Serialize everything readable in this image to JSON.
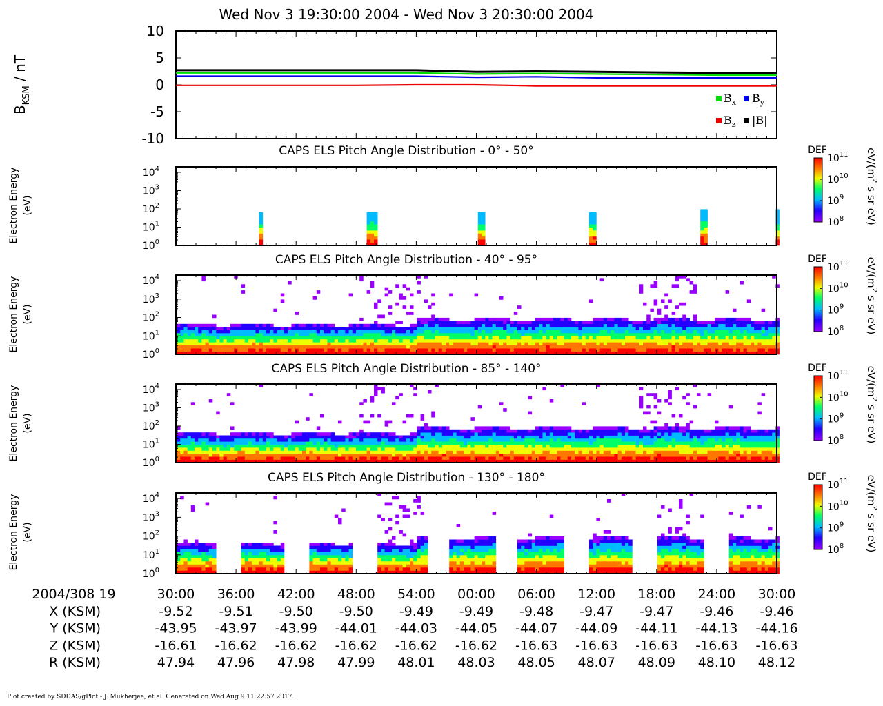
{
  "title": "Wed Nov 3 19:30:00 2004 - Wed Nov 3 20:30:00 2004",
  "footer": "Plot created by SDDAS/gPlot - J. Mukherjee, et al.  Generated on Wed Aug 9 11:22:57 2017.",
  "colors": {
    "bx": "#00dd00",
    "by": "#0000ee",
    "bz": "#ee0000",
    "btot": "#000000",
    "colormap": [
      "#9900ff",
      "#2200ff",
      "#00bbff",
      "#00ff66",
      "#eeff00",
      "#ff7700",
      "#ff0000"
    ]
  },
  "chart_data": [
    {
      "type": "line",
      "ylabel_main": "B",
      "ylabel_sub": "KSM",
      "ylabel_unit": " / nT",
      "ylim": [
        -10,
        10
      ],
      "yticks": [
        "10",
        "5",
        "0",
        "-5",
        "-10"
      ],
      "ytick_values": [
        10,
        5,
        0,
        -5,
        -10
      ],
      "x_minutes": [
        0,
        6,
        12,
        18,
        24,
        30,
        36,
        42,
        48,
        54,
        60
      ],
      "series": [
        {
          "name": "Bx",
          "label_main": "B",
          "label_sub": "x",
          "color_key": "bx",
          "values": [
            2.2,
            2.2,
            2.2,
            2.2,
            2.2,
            2.0,
            2.1,
            2.0,
            1.9,
            1.8,
            1.8
          ]
        },
        {
          "name": "By",
          "label_main": "B",
          "label_sub": "y",
          "color_key": "by",
          "values": [
            1.6,
            1.6,
            1.6,
            1.6,
            1.6,
            1.4,
            1.5,
            1.3,
            1.3,
            1.3,
            1.3
          ]
        },
        {
          "name": "Bz",
          "label_main": "B",
          "label_sub": "z",
          "color_key": "bz",
          "values": [
            -0.1,
            -0.1,
            -0.1,
            -0.1,
            0.0,
            0.0,
            -0.2,
            -0.2,
            -0.2,
            -0.2,
            -0.2
          ]
        },
        {
          "name": "|B|",
          "label_main": "|B|",
          "label_sub": "",
          "color_key": "btot",
          "values": [
            2.7,
            2.7,
            2.7,
            2.7,
            2.7,
            2.4,
            2.5,
            2.4,
            2.3,
            2.2,
            2.2
          ]
        }
      ]
    },
    {
      "type": "heatmap",
      "title": "CAPS ELS Pitch Angle Distribution - 0° - 50°",
      "ylabel": [
        "Electron Energy",
        "(eV)"
      ],
      "colorbar": {
        "label": "DEF",
        "unit_main": "eV/(m",
        "unit_sup": "2",
        "unit_tail": " s sr eV)",
        "ticks": [
          "11",
          "10",
          "9",
          "8"
        ],
        "tick_base": "10",
        "range_log": [
          8,
          11
        ]
      },
      "yticks_exp": [
        "4",
        "3",
        "2",
        "1",
        "0"
      ],
      "ytick_base": "10",
      "ylim_log": [
        0,
        4.3
      ],
      "coverage": "intermittent",
      "activity_windows_min": [
        [
          8.0,
          8.5
        ],
        [
          19.0,
          20.0
        ],
        [
          30.0,
          30.8
        ],
        [
          41.0,
          41.8
        ],
        [
          52.2,
          53.0
        ],
        [
          59.8,
          60.0
        ]
      ]
    },
    {
      "type": "heatmap",
      "title": "CAPS ELS Pitch Angle Distribution - 40° - 95°",
      "ylabel": [
        "Electron Energy",
        "(eV)"
      ],
      "colorbar": {
        "label": "DEF",
        "unit_main": "eV/(m",
        "unit_sup": "2",
        "unit_tail": " s sr eV)",
        "ticks": [
          "11",
          "10",
          "9",
          "8"
        ],
        "tick_base": "10",
        "range_log": [
          8,
          11
        ]
      },
      "yticks_exp": [
        "4",
        "3",
        "2",
        "1",
        "0"
      ],
      "ytick_base": "10",
      "ylim_log": [
        0,
        4.3
      ],
      "coverage": "continuous",
      "activity_windows_min": [
        [
          0,
          60
        ]
      ]
    },
    {
      "type": "heatmap",
      "title": "CAPS ELS Pitch Angle Distribution - 85° - 140°",
      "ylabel": [
        "Electron Energy",
        "(eV)"
      ],
      "colorbar": {
        "label": "DEF",
        "unit_main": "eV/(m",
        "unit_sup": "2",
        "unit_tail": " s sr eV)",
        "ticks": [
          "11",
          "10",
          "9",
          "8"
        ],
        "tick_base": "10",
        "range_log": [
          8,
          11
        ]
      },
      "yticks_exp": [
        "4",
        "3",
        "2",
        "1",
        "0"
      ],
      "ytick_base": "10",
      "ylim_log": [
        0,
        4.3
      ],
      "coverage": "continuous",
      "activity_windows_min": [
        [
          0,
          60
        ]
      ]
    },
    {
      "type": "heatmap",
      "title": "CAPS ELS Pitch Angle Distribution - 130° - 180°",
      "ylabel": [
        "Electron Energy",
        "(eV)"
      ],
      "colorbar": {
        "label": "DEF",
        "unit_main": "eV/(m",
        "unit_sup": "2",
        "unit_tail": " s sr eV)",
        "ticks": [
          "11",
          "10",
          "9",
          "8"
        ],
        "tick_base": "10",
        "range_log": [
          8,
          11
        ]
      },
      "yticks_exp": [
        "4",
        "3",
        "2",
        "1",
        "0"
      ],
      "ytick_base": "10",
      "ylim_log": [
        0,
        4.3
      ],
      "coverage": "gapped",
      "activity_windows_min": [
        [
          0,
          4.0
        ],
        [
          6.2,
          10.8
        ],
        [
          13.0,
          17.5
        ],
        [
          20.0,
          24.8
        ],
        [
          27.0,
          31.8
        ],
        [
          34.0,
          38.5
        ],
        [
          41.0,
          45.5
        ],
        [
          48.0,
          52.5
        ],
        [
          55.0,
          60.0
        ]
      ]
    }
  ],
  "x_axis": {
    "start_label": "2004/308 19",
    "ticks": [
      "30:00",
      "36:00",
      "42:00",
      "48:00",
      "54:00",
      "00:00",
      "06:00",
      "12:00",
      "18:00",
      "24:00",
      "30:00"
    ],
    "tick_minutes": [
      0,
      6,
      12,
      18,
      24,
      30,
      36,
      42,
      48,
      54,
      60
    ]
  },
  "ephemeris": [
    {
      "label": "X (KSM)",
      "values": [
        "-9.52",
        "-9.51",
        "-9.50",
        "-9.50",
        "-9.49",
        "-9.49",
        "-9.48",
        "-9.47",
        "-9.47",
        "-9.46",
        "-9.46"
      ]
    },
    {
      "label": "Y (KSM)",
      "values": [
        "-43.95",
        "-43.97",
        "-43.99",
        "-44.01",
        "-44.03",
        "-44.05",
        "-44.07",
        "-44.09",
        "-44.11",
        "-44.13",
        "-44.16"
      ]
    },
    {
      "label": "Z (KSM)",
      "values": [
        "-16.61",
        "-16.62",
        "-16.62",
        "-16.62",
        "-16.62",
        "-16.62",
        "-16.63",
        "-16.63",
        "-16.63",
        "-16.63",
        "-16.63"
      ]
    },
    {
      "label": "R (KSM)",
      "values": [
        "47.94",
        "47.96",
        "47.98",
        "47.99",
        "48.01",
        "48.03",
        "48.05",
        "48.07",
        "48.09",
        "48.10",
        "48.12"
      ]
    }
  ]
}
